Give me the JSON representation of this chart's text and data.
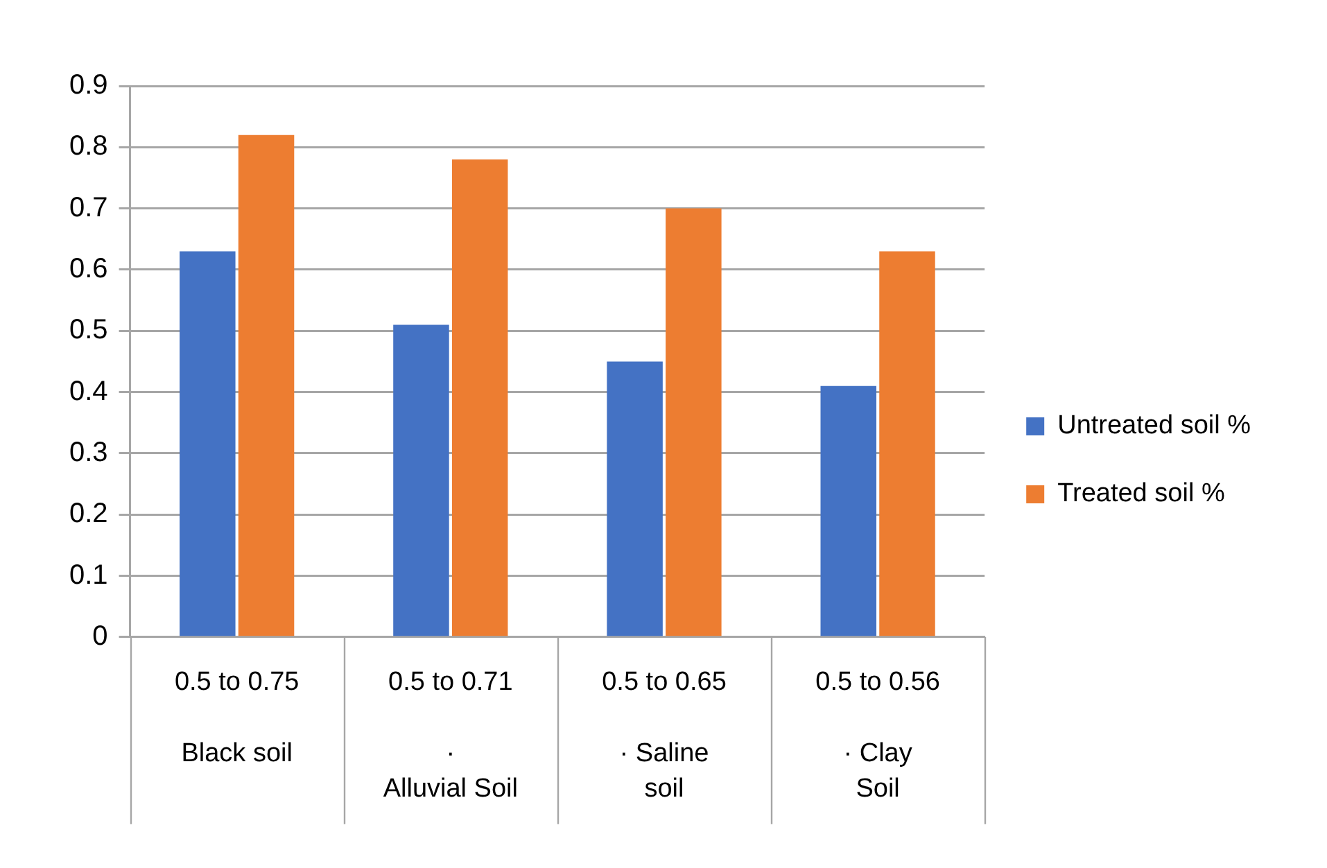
{
  "chart_data": {
    "type": "bar",
    "categories": [
      "0.5 to 0.75\nBlack soil",
      "0.5 to 0.71\n·\nAlluvial Soil",
      "0.5 to 0.65\n· Saline\nsoil",
      "0.5 to 0.56\n· Clay\nSoil"
    ],
    "series": [
      {
        "name": "Untreated soil %",
        "color": "#4472c4",
        "values": [
          0.63,
          0.51,
          0.45,
          0.41
        ]
      },
      {
        "name": "Treated soil %",
        "color": "#ed7d31",
        "values": [
          0.82,
          0.78,
          0.7,
          0.63
        ]
      }
    ],
    "ylim": [
      0,
      0.9
    ],
    "yticks": [
      0,
      0.1,
      0.2,
      0.3,
      0.4,
      0.5,
      0.6,
      0.7,
      0.8,
      0.9
    ],
    "grid": "y",
    "legend": "right"
  }
}
